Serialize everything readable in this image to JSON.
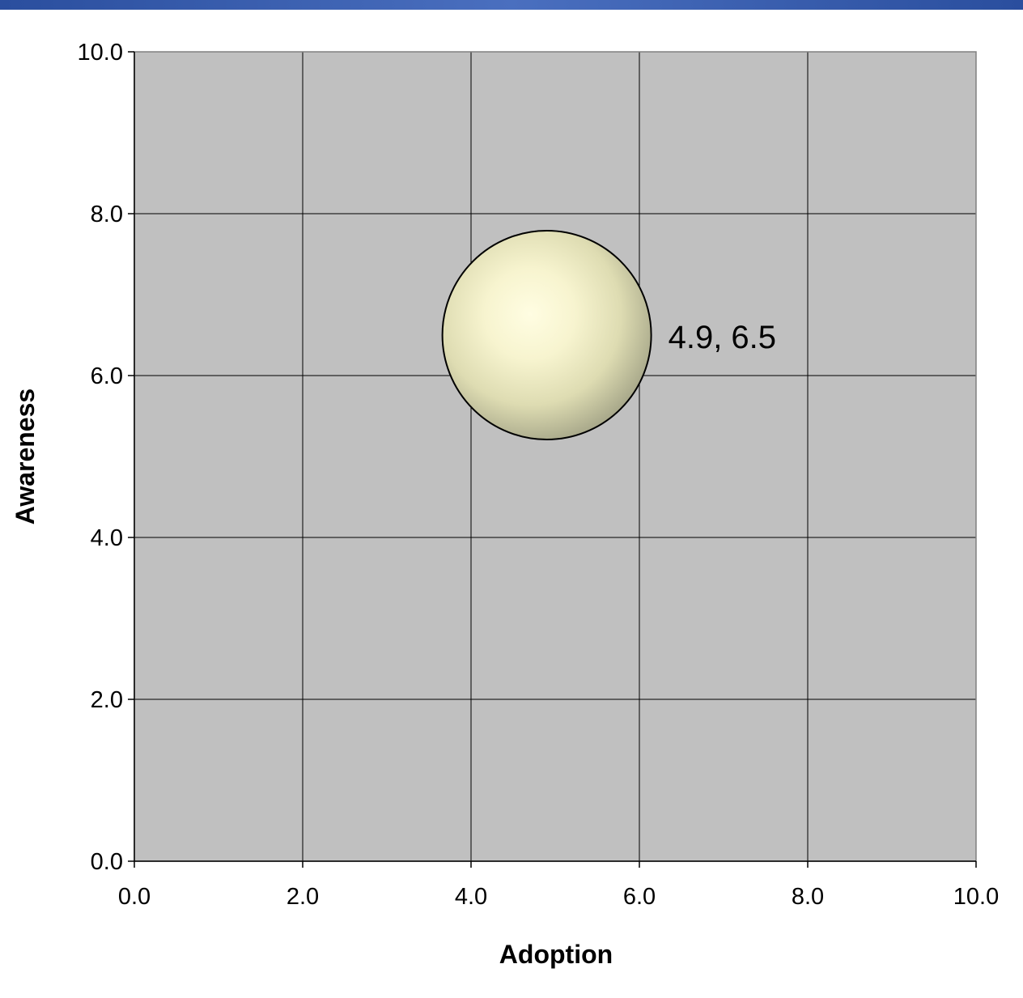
{
  "chart_data": {
    "type": "scatter",
    "xlabel": "Adoption",
    "ylabel": "Awareness",
    "xlim": [
      0,
      10
    ],
    "ylim": [
      0,
      10
    ],
    "x_ticks": [
      "0.0",
      "2.0",
      "4.0",
      "6.0",
      "8.0",
      "10.0"
    ],
    "y_ticks": [
      "0.0",
      "2.0",
      "4.0",
      "6.0",
      "8.0",
      "10.0"
    ],
    "grid": true,
    "series": [
      {
        "x": [
          4.9
        ],
        "y": [
          6.5
        ],
        "labels": [
          "4.9, 6.5"
        ]
      }
    ]
  },
  "colors": {
    "plot_background": "#c0c0c0",
    "gridline": "#000000",
    "bubble_highlight": "#fffde0",
    "bubble_shadow": "#a8a888",
    "header_band": "#2a4e9e"
  }
}
